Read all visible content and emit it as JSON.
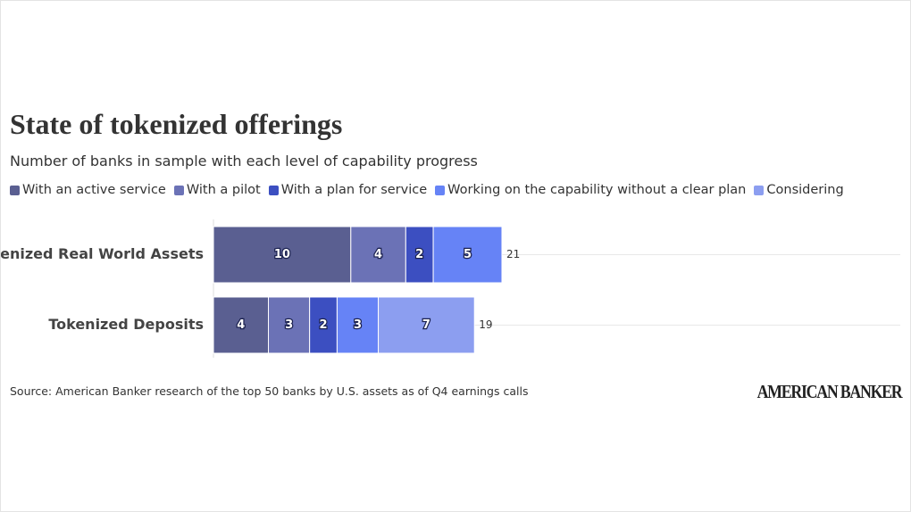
{
  "chart_data": {
    "type": "stacked-bar-horizontal",
    "title": "State of tokenized offerings",
    "subtitle": "Number of banks in sample with each level of capability progress",
    "categories": [
      "Tokenized Real World Assets",
      "Tokenized Deposits"
    ],
    "series": [
      {
        "name": "With an active service",
        "color": "#5a5f91",
        "values": [
          10,
          4
        ]
      },
      {
        "name": "With a pilot",
        "color": "#6b72b6",
        "values": [
          4,
          3
        ]
      },
      {
        "name": "With a plan for service",
        "color": "#3c4fc1",
        "values": [
          2,
          2
        ]
      },
      {
        "name": "Working on the capability without a clear plan",
        "color": "#6683f6",
        "values": [
          5,
          3
        ]
      },
      {
        "name": "Considering",
        "color": "#8c9ef0",
        "values": [
          null,
          7
        ]
      }
    ],
    "totals": [
      21,
      19
    ],
    "xlim": [
      0,
      50
    ],
    "source": "Source: American Banker research of the top 50 banks by U.S. assets as of Q4 earnings calls",
    "logo": "AMERICAN BANKER"
  }
}
